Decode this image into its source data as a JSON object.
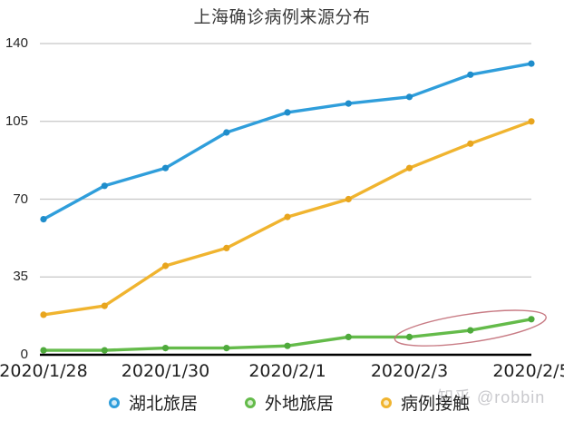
{
  "page": {
    "background": "#ffffff"
  },
  "chart_data": {
    "type": "line",
    "title": "上海确诊病例来源分布",
    "x": [
      "2020/1/28",
      "2020/1/29",
      "2020/1/30",
      "2020/1/31",
      "2020/2/1",
      "2020/2/2",
      "2020/2/3",
      "2020/2/4",
      "2020/2/5"
    ],
    "x_tick_labels": [
      "2020/1/28",
      "2020/1/30",
      "2020/2/1",
      "2020/2/3",
      "2020/2/5"
    ],
    "yticks": [
      0,
      35,
      70,
      105,
      140
    ],
    "ylim": [
      0,
      140
    ],
    "grid": "horizontal-gridlines",
    "legend_position": "bottom",
    "series": [
      {
        "name": "湖北旅居",
        "color": "#2f9edb",
        "marker_color": "#1f8dcb",
        "light": "#cfeaf8",
        "values": [
          61,
          76,
          84,
          100,
          109,
          113,
          116,
          126,
          131
        ]
      },
      {
        "name": "外地旅居",
        "color": "#64bb4a",
        "marker_color": "#4faa3c",
        "light": "#d9efd2",
        "values": [
          2,
          2,
          3,
          3,
          4,
          8,
          8,
          11,
          16
        ]
      },
      {
        "name": "病例接触",
        "color": "#f0b42f",
        "marker_color": "#e8a51e",
        "light": "#faecc8",
        "values": [
          18,
          22,
          40,
          48,
          62,
          70,
          84,
          95,
          105
        ]
      }
    ],
    "annotation": {
      "type": "ellipse",
      "description": "hand-drawn red circle around the last three points of 外地旅居",
      "series_index": 1,
      "point_from": 6,
      "point_to": 8,
      "color": "#c26d77"
    },
    "axis_color": "#000000",
    "gridline_color": "#c6c6c6"
  },
  "watermark": {
    "text": "知乎 @robbin"
  }
}
